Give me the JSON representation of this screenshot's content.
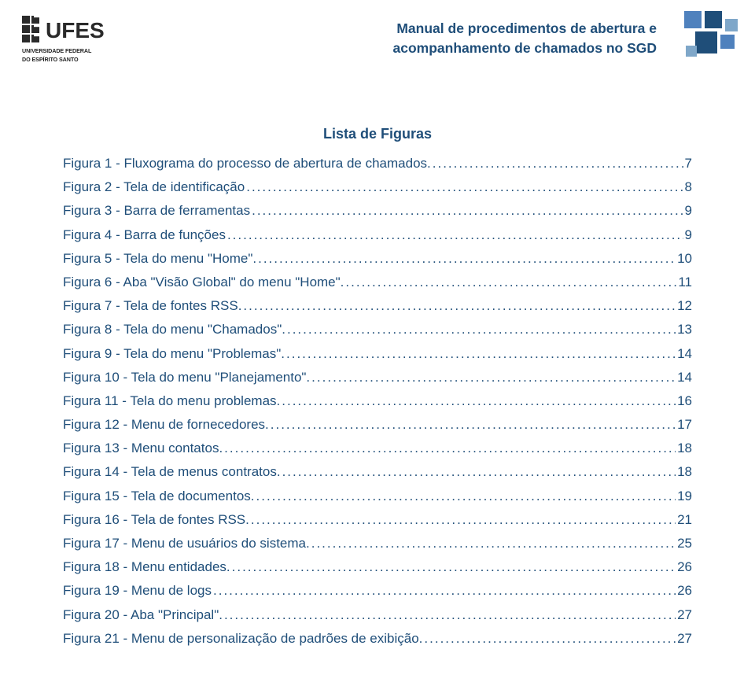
{
  "header": {
    "title_line1": "Manual de procedimentos de abertura e",
    "title_line2": "acompanhamento de chamados no SGD",
    "logo_text": "UFES",
    "logo_caption_line1": "UNIVERSIDADE FEDERAL",
    "logo_caption_line2": "DO ESPÍRITO SANTO",
    "title_color": "#1f4e79",
    "deco_colors": {
      "dark": "#1f4e79",
      "light": "#7fa7c9"
    }
  },
  "list_title": "Lista de Figuras",
  "link_color": "#1f4e79",
  "font_size_pt": 13,
  "toc": [
    {
      "label": "Figura 1 - Fluxograma do processo de abertura de chamados.",
      "page": "7"
    },
    {
      "label": "Figura 2 - Tela de identificação",
      "page": "8"
    },
    {
      "label": "Figura 3 - Barra de ferramentas",
      "page": "9"
    },
    {
      "label": "Figura 4 - Barra de funções",
      "page": "9"
    },
    {
      "label": "Figura 5 - Tela do menu \"Home\".",
      "page": "10"
    },
    {
      "label": "Figura 6 - Aba \"Visão Global\" do menu \"Home\".",
      "page": "11"
    },
    {
      "label": "Figura 7 - Tela de fontes RSS.",
      "page": "12"
    },
    {
      "label": "Figura 8 - Tela do menu \"Chamados\".",
      "page": "13"
    },
    {
      "label": "Figura 9 - Tela do menu \"Problemas\".",
      "page": "14"
    },
    {
      "label": "Figura 10 - Tela do menu \"Planejamento\".",
      "page": "14"
    },
    {
      "label": "Figura 11 - Tela do menu problemas.",
      "page": "16"
    },
    {
      "label": "Figura 12 - Menu de fornecedores.",
      "page": "17"
    },
    {
      "label": "Figura 13 - Menu contatos.",
      "page": "18"
    },
    {
      "label": "Figura 14 - Tela de menus contratos.",
      "page": "18"
    },
    {
      "label": "Figura 15 - Tela de documentos.",
      "page": "19"
    },
    {
      "label": "Figura 16 - Tela de fontes RSS.",
      "page": "21"
    },
    {
      "label": "Figura 17 - Menu de usuários do sistema.",
      "page": "25"
    },
    {
      "label": "Figura 18 - Menu entidades.",
      "page": "26"
    },
    {
      "label": "Figura 19 - Menu de logs",
      "page": "26"
    },
    {
      "label": "Figura 20 - Aba \"Principal\".",
      "page": "27"
    },
    {
      "label": "Figura 21 - Menu de personalização de padrões de exibição.",
      "page": "27"
    }
  ]
}
